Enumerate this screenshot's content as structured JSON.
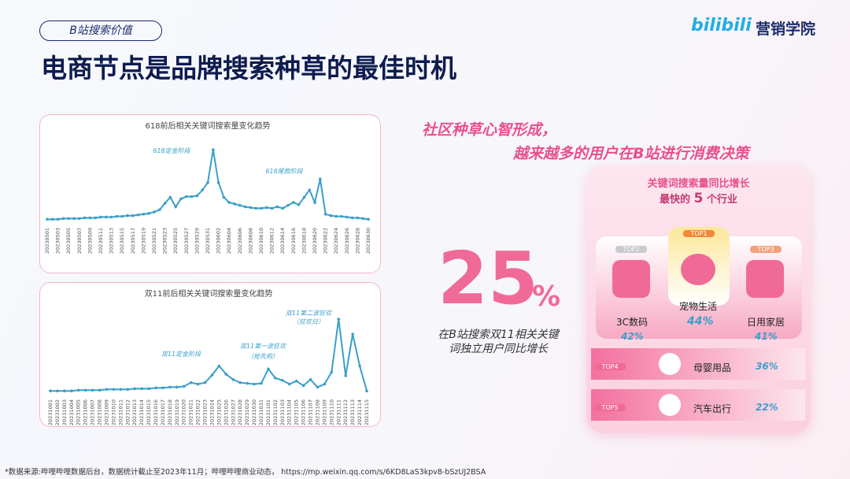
{
  "tag": "B站搜索价值",
  "title": "电商节点是品牌搜索种草的最佳时机",
  "logos": {
    "brand": "bilibili",
    "academy": "营销学院"
  },
  "chart_data": [
    {
      "type": "line",
      "title": "618前后相关关键词搜索量变化趋势",
      "color": "#3a9fc9",
      "categories": [
        "20230501",
        null,
        "20230503",
        null,
        "20230505",
        null,
        "20230507",
        null,
        "20230509",
        null,
        "20230511",
        null,
        "20230513",
        null,
        "20230515",
        null,
        "20230517",
        null,
        "20230519",
        null,
        "20230521",
        null,
        "20230523",
        null,
        "20230525",
        null,
        "20230527",
        null,
        "20230529",
        null,
        "20230531",
        null,
        "20230602",
        null,
        "20230604",
        null,
        "20230606",
        null,
        "20230608",
        null,
        "20230610",
        null,
        "20230612",
        null,
        "20230614",
        null,
        "20230616",
        null,
        "20230618",
        null,
        "20230620",
        null,
        "20230622",
        null,
        "20230624",
        null,
        "20230626",
        null,
        "20230628",
        null,
        "20230630"
      ],
      "values": [
        5,
        5,
        5,
        6,
        6,
        6,
        6,
        7,
        7,
        7,
        8,
        8,
        8,
        9,
        9,
        10,
        10,
        11,
        12,
        13,
        15,
        18,
        27,
        35,
        22,
        33,
        36,
        36,
        37,
        45,
        55,
        100,
        55,
        35,
        28,
        26,
        24,
        22,
        21,
        20,
        20,
        21,
        20,
        22,
        20,
        24,
        28,
        25,
        35,
        45,
        28,
        60,
        12,
        10,
        9,
        9,
        8,
        7,
        7,
        6,
        5
      ],
      "annotations": [
        "618定金阶段",
        "618尾款阶段"
      ]
    },
    {
      "type": "line",
      "title": "双11前后相关关键词搜索量变化趋势",
      "color": "#3a9fc9",
      "categories": [
        "20231001",
        "20231002",
        "20231003",
        "20231004",
        "20231005",
        "20231006",
        "20231007",
        "20231008",
        "20231009",
        "20231010",
        "20231011",
        "20231012",
        "20231013",
        "20231014",
        "20231015",
        "20231016",
        "20231017",
        "20231018",
        "20231019",
        "20231020",
        "20231021",
        "20231022",
        "20231023",
        "20231024",
        "20231025",
        "20231026",
        "20231027",
        "20231028",
        "20231029",
        "20231030",
        "20231031",
        "20231101",
        "20231102",
        "20231103",
        "20231104",
        "20231105",
        "20231106",
        "20231107",
        "20231108",
        "20231109",
        "20231110",
        "20231111",
        "20231112",
        "20231113",
        "20231114",
        "20231115"
      ],
      "values": [
        5,
        5,
        5,
        5,
        6,
        6,
        6,
        6,
        7,
        7,
        7,
        7,
        8,
        8,
        8,
        9,
        9,
        10,
        10,
        11,
        16,
        14,
        16,
        26,
        38,
        27,
        20,
        16,
        15,
        14,
        15,
        34,
        22,
        19,
        14,
        18,
        12,
        20,
        10,
        14,
        30,
        100,
        25,
        80,
        38,
        5
      ],
      "annotations": [
        "双11定金阶段",
        "双11第一波狂欢",
        "（抢先购）",
        "双11第二波狂欢",
        "（狂欢日）"
      ]
    }
  ],
  "slogan": [
    "社区种草心智形成，",
    "越来越多的用户在B站进行消费决策"
  ],
  "stat": {
    "number": "25",
    "unit": "%",
    "desc": [
      "在B站搜索双11相关关键",
      "词独立用户同比增长"
    ]
  },
  "ranking": {
    "title": "关键词搜索量同比增长",
    "subtitle": [
      "最快的",
      "5",
      "个行业"
    ],
    "items": [
      {
        "rank": "TOP1",
        "name": "宠物生活",
        "growth": "44%"
      },
      {
        "rank": "TOP2",
        "name": "3C数码",
        "growth": "42%"
      },
      {
        "rank": "TOP3",
        "name": "日用家居",
        "growth": "41%"
      },
      {
        "rank": "TOP4",
        "name": "母婴用品",
        "growth": "36%"
      },
      {
        "rank": "TOP5",
        "name": "汽车出行",
        "growth": "22%"
      }
    ]
  },
  "footer": "*数据来源:哔哩哔哩数据后台，数据统计截止至2023年11月；哔哩哔哩商业动态， https://mp.weixin.qq.com/s/6KD8LaS3kpv8-bSzUJ2BSA"
}
